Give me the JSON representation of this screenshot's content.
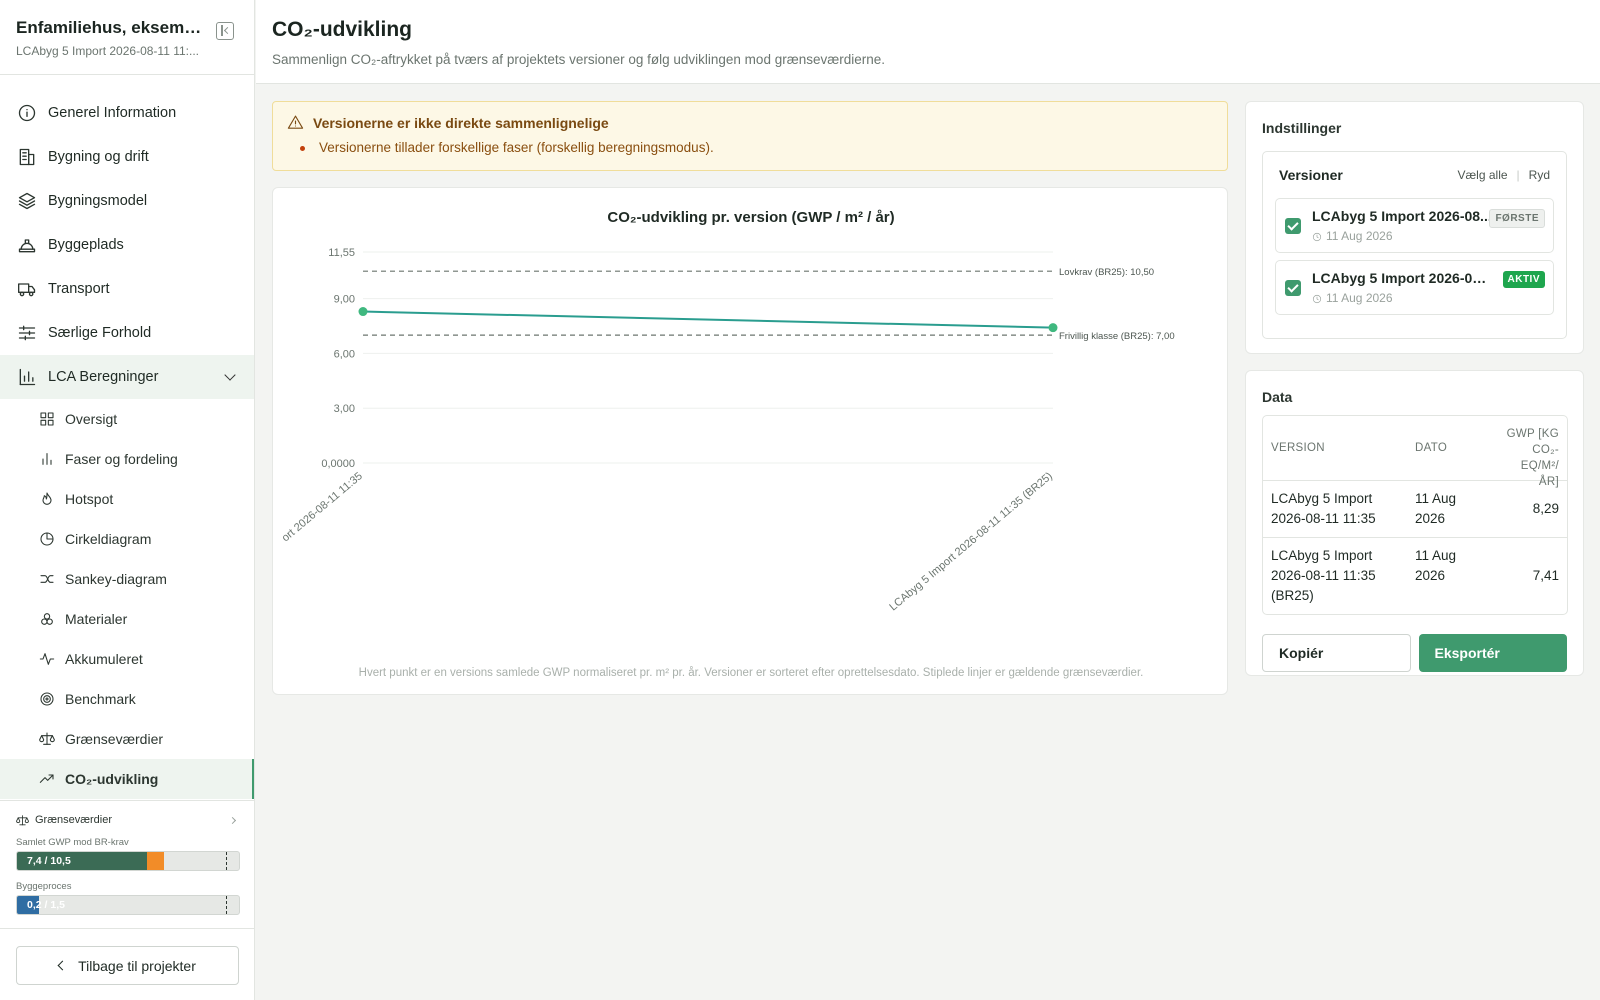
{
  "project": {
    "title": "Enfamiliehus, eksempel...",
    "subtitle": "LCAbyg 5 Import 2026-08-11 11:..."
  },
  "nav": {
    "items": [
      {
        "label": "Generel Information",
        "icon": "info-icon"
      },
      {
        "label": "Bygning og drift",
        "icon": "building-icon"
      },
      {
        "label": "Bygningsmodel",
        "icon": "layers-icon"
      },
      {
        "label": "Byggeplads",
        "icon": "hardhat-icon"
      },
      {
        "label": "Transport",
        "icon": "truck-icon"
      },
      {
        "label": "Særlige Forhold",
        "icon": "sliders-icon"
      }
    ],
    "section": {
      "label": "LCA Beregninger",
      "icon": "bar-chart-icon"
    },
    "sub_items": [
      {
        "label": "Oversigt",
        "icon": "grid-icon"
      },
      {
        "label": "Faser og fordeling",
        "icon": "bar-chart-icon"
      },
      {
        "label": "Hotspot",
        "icon": "flame-icon"
      },
      {
        "label": "Cirkeldiagram",
        "icon": "pie-chart-icon"
      },
      {
        "label": "Sankey-diagram",
        "icon": "sankey-icon"
      },
      {
        "label": "Materialer",
        "icon": "materials-icon"
      },
      {
        "label": "Akkumuleret",
        "icon": "activity-icon"
      },
      {
        "label": "Benchmark",
        "icon": "target-icon"
      },
      {
        "label": "Grænseværdier",
        "icon": "scale-icon"
      },
      {
        "label": "CO₂-udvikling",
        "icon": "trending-up-icon"
      }
    ]
  },
  "limits": {
    "title": "Grænseværdier",
    "bars": [
      {
        "label": "Samlet GWP mod BR-krav",
        "text": "7,4 / 10,5",
        "value": 7.4,
        "limit": 10.5
      },
      {
        "label": "Byggeproces",
        "text": "0,2 / 1,5",
        "value": 0.2,
        "limit": 1.5
      }
    ]
  },
  "back_label": "Tilbage til projekter",
  "header": {
    "title": "CO₂-udvikling",
    "subtitle": "Sammenlign CO₂-aftrykket på tværs af projektets versioner og følg udviklingen mod grænseværdierne."
  },
  "warning": {
    "title": "Versionerne er ikke direkte sammenlignelige",
    "item": "Versionerne tillader forskellige faser (forskellig beregningsmodus)."
  },
  "chart_data": {
    "type": "line",
    "title": "CO₂-udvikling pr. version (GWP / m² / år)",
    "x": [
      "LCAbyg 5 Import 2026-08-11 11:35",
      "LCAbyg 5 Import 2026-08-11 11:35 (BR25)"
    ],
    "x_tick_labels": [
      "ort 2026-08-11 11:35",
      "LCAbyg 5 Import 2026-08-11 11:35 (BR25)"
    ],
    "values": [
      8.29,
      7.41
    ],
    "ylim": [
      0,
      11.55
    ],
    "y_ticks": [
      {
        "value": 0,
        "label": "0,0000"
      },
      {
        "value": 3,
        "label": "3,00"
      },
      {
        "value": 6,
        "label": "6,00"
      },
      {
        "value": 9,
        "label": "9,00"
      },
      {
        "value": 11.55,
        "label": "11,55"
      }
    ],
    "thresholds": [
      {
        "value": 10.5,
        "label": "Lovkrav (BR25): 10,50"
      },
      {
        "value": 7.0,
        "label": "Frivillig klasse (BR25): 7,00"
      }
    ],
    "line_color": "#2a9d8f",
    "point_color": "#3fb87f",
    "grid": true,
    "footnote": "Hvert punkt er en versions samlede GWP normaliseret pr. m² pr. år. Versioner er sorteret efter oprettelsesdato. Stiplede linjer er gældende grænseværdier."
  },
  "settings": {
    "title": "Indstillinger",
    "versions_title": "Versioner",
    "select_all": "Vælg alle",
    "clear": "Ryd",
    "versions": [
      {
        "name": "LCAbyg 5 Import 2026-08...",
        "date": "11 Aug 2026",
        "badge": "FØRSTE"
      },
      {
        "name": "LCAbyg 5 Import 2026-08-...",
        "date": "11 Aug 2026",
        "badge": "AKTIV"
      }
    ]
  },
  "data_panel": {
    "title": "Data",
    "headers": [
      "VERSION",
      "DATO",
      "GWP [KG CO₂-EQ/M²/ ÅR]"
    ],
    "rows": [
      [
        "LCAbyg 5 Import 2026-08-11 11:35",
        "11 Aug 2026",
        "8,29"
      ],
      [
        "LCAbyg 5 Import 2026-08-11 11:35 (BR25)",
        "11 Aug 2026",
        "7,41"
      ]
    ],
    "copy_label": "Kopiér",
    "export_label": "Eksportér"
  },
  "colors": {
    "accent": "#3f9a6e",
    "active_badge": "#1ea64e",
    "warning_bg": "#fdf8e6",
    "bar_primary": "#3b6b55",
    "bar_over": "#f28c28",
    "bar_secondary": "#2f6da3"
  }
}
